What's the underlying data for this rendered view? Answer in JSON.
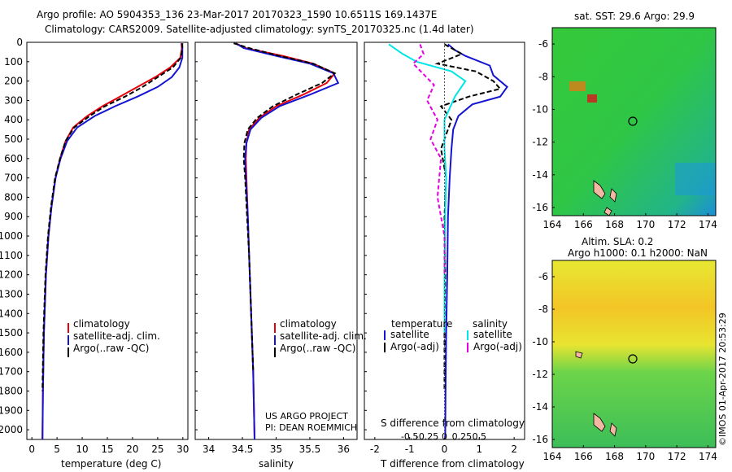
{
  "header": {
    "line1": "Argo profile: AO 5904353_136 23-Mar-2017 20170323_1590 10.6511S 169.1437E",
    "line2": "Climatology: CARS2009. Satellite-adjusted climatology: synTS_20170325.nc (1.4d later)"
  },
  "colors": {
    "climatology": "#e8000b",
    "satellite": "#1414d2",
    "argo": "#000000",
    "sal_satellite": "#00e5e5",
    "sal_argo": "#e600e6"
  },
  "chart_data": [
    {
      "type": "line",
      "name": "temperature-profile",
      "xlabel": "temperature (deg C)",
      "ylabel": "",
      "xlim": [
        -1,
        31
      ],
      "ylim": [
        2050,
        0
      ],
      "xticks": [
        0,
        5,
        10,
        15,
        20,
        25,
        30
      ],
      "yticks": [
        0,
        100,
        200,
        300,
        400,
        500,
        600,
        700,
        800,
        900,
        1000,
        1100,
        1200,
        1300,
        1400,
        1500,
        1600,
        1700,
        1800,
        1900,
        2000
      ],
      "legend": [
        "climatology",
        "satellite-adj. clim.",
        "Argo(..raw -QC)"
      ],
      "series": [
        {
          "name": "climatology",
          "x": [
            29.7,
            29.8,
            29.5,
            27.5,
            24.5,
            21,
            17.5,
            14,
            11,
            8.2,
            6.7,
            5.6,
            4.7,
            3.9,
            3.3,
            2.8,
            2.4,
            2.2,
            2.1
          ],
          "y": [
            5,
            30,
            80,
            130,
            180,
            230,
            280,
            330,
            380,
            440,
            510,
            600,
            700,
            850,
            1000,
            1200,
            1500,
            1800,
            2050
          ]
        },
        {
          "name": "satellite-adj. clim.",
          "x": [
            29.8,
            29.9,
            29.9,
            29.3,
            27.8,
            25,
            21,
            16.5,
            12.5,
            9,
            7,
            5.7,
            4.7,
            3.9,
            3.3,
            2.8,
            2.4,
            2.2,
            2.1
          ],
          "y": [
            5,
            30,
            80,
            130,
            180,
            230,
            280,
            330,
            380,
            440,
            510,
            600,
            700,
            850,
            1000,
            1200,
            1500,
            1800,
            2050
          ]
        },
        {
          "name": "Argo(..raw -QC)",
          "x": [
            29.9,
            29.9,
            29.6,
            28,
            25,
            22,
            18.5,
            14.5,
            11.5,
            8.4,
            6.7,
            5.6,
            4.6,
            3.8,
            3.2,
            2.7,
            2.3,
            2.1
          ],
          "y": [
            5,
            30,
            80,
            130,
            180,
            230,
            280,
            330,
            380,
            440,
            510,
            600,
            700,
            850,
            1000,
            1200,
            1500,
            1800
          ]
        }
      ]
    },
    {
      "type": "line",
      "name": "salinity-profile",
      "xlabel": "salinity",
      "xlim": [
        33.8,
        36.2
      ],
      "ylim": [
        2050,
        0
      ],
      "xticks": [
        34,
        34.5,
        35,
        35.5,
        36
      ],
      "legend": [
        "climatology",
        "satellite-adj. clim.",
        "Argo(..raw -QC)"
      ],
      "series": [
        {
          "name": "climatology",
          "x": [
            34.4,
            34.55,
            35.1,
            35.55,
            35.87,
            35.75,
            35.4,
            35.0,
            34.75,
            34.6,
            34.56,
            34.55,
            34.56,
            34.58,
            34.6,
            34.63,
            34.66,
            34.68
          ],
          "y": [
            5,
            30,
            70,
            110,
            160,
            210,
            270,
            330,
            390,
            450,
            520,
            600,
            700,
            900,
            1100,
            1400,
            1700,
            2050
          ]
        },
        {
          "name": "satellite-adj. clim.",
          "x": [
            34.4,
            34.52,
            35.0,
            35.5,
            35.85,
            35.92,
            35.5,
            35.05,
            34.78,
            34.62,
            34.56,
            34.54,
            34.55,
            34.58,
            34.6,
            34.63,
            34.66,
            34.68
          ],
          "y": [
            5,
            30,
            70,
            110,
            160,
            210,
            270,
            330,
            390,
            450,
            520,
            600,
            700,
            900,
            1100,
            1400,
            1700,
            2050
          ]
        },
        {
          "name": "Argo(..raw -QC)",
          "x": [
            34.37,
            34.6,
            35.05,
            35.55,
            35.87,
            35.68,
            35.3,
            34.95,
            34.72,
            34.58,
            34.53,
            34.52,
            34.54,
            34.57,
            34.6,
            34.63,
            34.66
          ],
          "y": [
            5,
            30,
            70,
            110,
            160,
            210,
            270,
            330,
            390,
            450,
            520,
            600,
            700,
            900,
            1100,
            1400,
            1700
          ]
        }
      ]
    },
    {
      "type": "line",
      "name": "difference-from-climatology",
      "xlabel": "T difference from climatology",
      "xlabel2": "S difference from climatology",
      "xlim": [
        -2.3,
        2.3
      ],
      "ylim": [
        2050,
        0
      ],
      "xticks_T": [
        -2,
        -1,
        0,
        1,
        2
      ],
      "xticks_S": [
        "-0.5",
        "-0.25",
        "0",
        "0.25",
        "0.5"
      ],
      "legend_headers": [
        "temperature",
        "salinity"
      ],
      "legend": [
        "satellite",
        "Argo(-adj)",
        "satellite",
        "Argo(-adj)"
      ],
      "series": [
        {
          "name": "T satellite",
          "x": [
            0.1,
            0.3,
            0.6,
            1.3,
            1.4,
            1.8,
            1.6,
            0.8,
            0.4,
            0.25,
            0.2,
            0.15,
            0.1,
            0.08,
            0.05,
            0.03,
            0.02
          ],
          "y": [
            10,
            40,
            70,
            120,
            170,
            230,
            280,
            320,
            380,
            450,
            550,
            700,
            900,
            1200,
            1500,
            1800,
            2050
          ]
        },
        {
          "name": "T Argo(-adj)",
          "x": [
            0.0,
            0.5,
            -0.2,
            0.9,
            1.4,
            1.6,
            0.7,
            -0.1,
            0.2,
            0.1,
            -0.1,
            0.05,
            0.0,
            0.02,
            0.0,
            0.0
          ],
          "y": [
            10,
            60,
            110,
            150,
            200,
            240,
            280,
            330,
            400,
            450,
            550,
            700,
            900,
            1200,
            1500,
            1800
          ]
        },
        {
          "name": "S satellite",
          "x": [
            -1.6,
            -1.2,
            -0.8,
            0.2,
            0.6,
            0.3,
            0.0,
            0.0,
            0.05,
            0.02,
            0.0,
            0.0
          ],
          "y": [
            10,
            60,
            100,
            150,
            200,
            280,
            400,
            550,
            700,
            900,
            1200,
            1500
          ]
        },
        {
          "name": "S Argo(-adj)",
          "x": [
            -0.7,
            -0.6,
            -0.9,
            -0.3,
            -0.5,
            -0.2,
            -0.4,
            -0.1,
            -0.2,
            0.0,
            0.0
          ],
          "y": [
            10,
            60,
            110,
            220,
            300,
            400,
            500,
            600,
            800,
            1000,
            1200
          ]
        }
      ],
      "annotations": [
        "US ARGO PROJECT",
        "PI: DEAN ROEMMICH"
      ]
    },
    {
      "type": "heatmap",
      "name": "sst-map",
      "title": "sat. SST: 29.6 Argo: 29.9",
      "xlim": [
        164,
        174.5
      ],
      "ylim": [
        -16.5,
        -5
      ],
      "xticks": [
        164,
        166,
        168,
        170,
        172,
        174
      ],
      "yticks": [
        -6,
        -8,
        -10,
        -12,
        -14,
        -16
      ],
      "argo_position": {
        "lon": 169.14,
        "lat": -10.65
      }
    },
    {
      "type": "heatmap",
      "name": "sla-map",
      "title": "Altim. SLA: 0.2",
      "subtitle": "Argo h1000: 0.1 h2000: NaN",
      "xlim": [
        164,
        174.5
      ],
      "ylim": [
        -16.5,
        -5
      ],
      "xticks": [
        164,
        166,
        168,
        170,
        172,
        174
      ],
      "yticks": [
        -6,
        -8,
        -10,
        -12,
        -14,
        -16
      ],
      "argo_position": {
        "lon": 169.14,
        "lat": -10.65
      }
    }
  ],
  "watermark": "©IMOS 01-Apr-2017 20:53:29"
}
